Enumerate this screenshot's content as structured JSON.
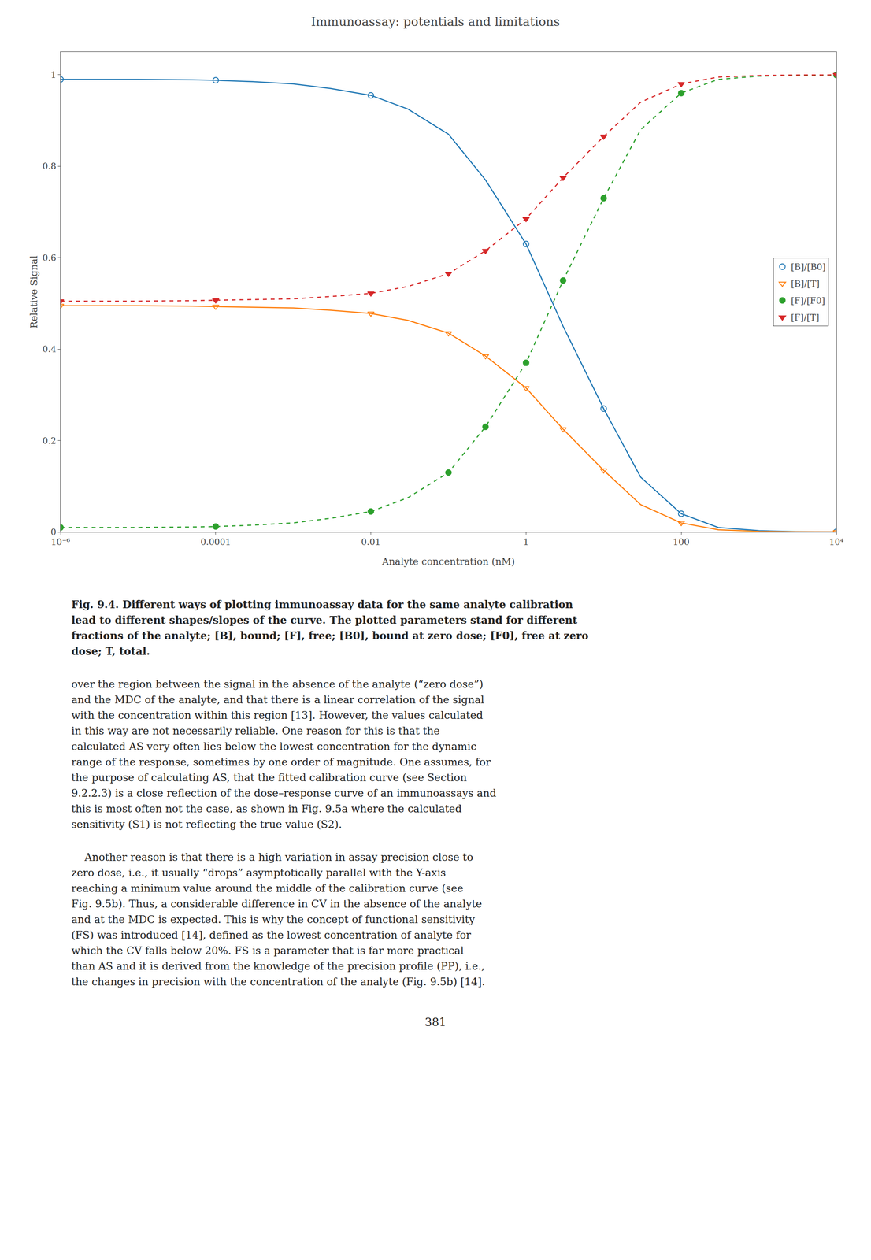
{
  "chart_data": {
    "type": "line",
    "title": "Immunoassay: potentials and limitations",
    "xlabel": "Analyte concentration (nM)",
    "ylabel": "Relative Signal",
    "log": "x",
    "xlim": [
      1e-06,
      10000.0
    ],
    "xticks": [
      {
        "value": 1e-06,
        "label": "10⁻⁶"
      },
      0.0001,
      0.01,
      1,
      100,
      {
        "value": 10000.0,
        "label": "10⁴"
      }
    ],
    "ylim": [
      0,
      1.05
    ],
    "yticks": [
      0,
      0.2,
      0.4,
      0.6,
      0.8,
      1
    ],
    "grid": false,
    "legend": "right",
    "series": [
      {
        "name": "[B]/[B0]",
        "marker": "circle-open",
        "line_style": "solid",
        "x": [
          1e-06,
          5e-06,
          1e-05,
          5e-05,
          0.0001,
          0.0003,
          0.001,
          0.003,
          0.01,
          0.03,
          0.1,
          0.3,
          1,
          3,
          10,
          30,
          100,
          300,
          1000,
          3000,
          10000.0
        ],
        "values": [
          0.99,
          0.99,
          0.99,
          0.989,
          0.988,
          0.985,
          0.98,
          0.97,
          0.955,
          0.925,
          0.87,
          0.77,
          0.63,
          0.45,
          0.27,
          0.12,
          0.04,
          0.01,
          0.003,
          0.001,
          0.0005
        ],
        "marker_x": [
          1e-06,
          0.0001,
          0.01,
          1.0,
          10.0,
          100.0,
          10000.0
        ],
        "marker_values": [
          0.99,
          0.988,
          0.955,
          0.63,
          0.27,
          0.04,
          0.0005
        ]
      },
      {
        "name": "[B]/[T]",
        "marker": "triangle-down-open",
        "line_style": "solid",
        "x": [
          1e-06,
          5e-06,
          1e-05,
          5e-05,
          0.0001,
          0.0003,
          0.001,
          0.003,
          0.01,
          0.03,
          0.1,
          0.3,
          1,
          3,
          10,
          30,
          100,
          300,
          1000,
          3000,
          10000.0
        ],
        "values": [
          0.495,
          0.495,
          0.495,
          0.494,
          0.493,
          0.492,
          0.49,
          0.485,
          0.478,
          0.463,
          0.435,
          0.385,
          0.315,
          0.225,
          0.135,
          0.06,
          0.02,
          0.005,
          0.0015,
          0.0005,
          0.0002
        ],
        "marker_x": [
          1e-06,
          0.0001,
          0.01,
          0.1,
          0.3,
          1.0,
          3.0,
          10.0,
          100.0,
          10000.0
        ],
        "marker_values": [
          0.495,
          0.493,
          0.478,
          0.435,
          0.385,
          0.315,
          0.225,
          0.135,
          0.02,
          0.0002
        ]
      },
      {
        "name": "[F]/[F0]",
        "marker": "circle",
        "line_style": "dash",
        "x": [
          1e-06,
          5e-06,
          1e-05,
          5e-05,
          0.0001,
          0.0003,
          0.001,
          0.003,
          0.01,
          0.03,
          0.1,
          0.3,
          1,
          3,
          10,
          30,
          100,
          300,
          1000,
          3000,
          10000.0
        ],
        "values": [
          0.01,
          0.01,
          0.01,
          0.011,
          0.012,
          0.015,
          0.02,
          0.03,
          0.045,
          0.075,
          0.13,
          0.23,
          0.37,
          0.55,
          0.73,
          0.88,
          0.96,
          0.99,
          0.997,
          0.999,
          0.9995
        ],
        "marker_x": [
          1e-06,
          0.0001,
          0.01,
          0.1,
          0.3,
          1.0,
          3.0,
          10.0,
          100.0,
          10000.0
        ],
        "marker_values": [
          0.01,
          0.012,
          0.045,
          0.13,
          0.23,
          0.37,
          0.55,
          0.73,
          0.96,
          0.9995
        ]
      },
      {
        "name": "[F]/[T]",
        "marker": "triangle-down",
        "line_style": "dash",
        "x": [
          1e-06,
          5e-06,
          1e-05,
          5e-05,
          0.0001,
          0.0003,
          0.001,
          0.003,
          0.01,
          0.03,
          0.1,
          0.3,
          1,
          3,
          10,
          30,
          100,
          300,
          1000,
          3000,
          10000.0
        ],
        "values": [
          0.505,
          0.505,
          0.505,
          0.506,
          0.507,
          0.508,
          0.51,
          0.515,
          0.522,
          0.537,
          0.565,
          0.615,
          0.685,
          0.775,
          0.865,
          0.94,
          0.98,
          0.995,
          0.9985,
          0.9995,
          0.9998
        ],
        "marker_x": [
          1e-06,
          0.0001,
          0.01,
          0.1,
          0.3,
          1.0,
          3.0,
          10.0,
          100.0,
          10000.0
        ],
        "marker_values": [
          0.505,
          0.507,
          0.522,
          0.565,
          0.615,
          0.685,
          0.775,
          0.865,
          0.98,
          0.9998
        ]
      }
    ],
    "annotations": [
      [
        "Fig. 9.4. Different ways of plotting immunoassay data for the same analyte calibration",
        "lead to different shapes/slopes of the curve. The plotted parameters stand for different",
        "fractions of the analyte; [B], bound; [F], free; [B0], bound at zero dose; [F0], free at zero",
        "dose; T, total."
      ],
      [
        "over the region between the signal in the absence of the analyte (“zero dose”)",
        "and the MDC of the analyte, and that there is a linear correlation of the signal",
        "with the concentration within this region [13]. However, the values calculated",
        "in this way are not necessarily reliable. One reason for this is that the",
        "calculated AS very often lies below the lowest concentration for the dynamic",
        "range of the response, sometimes by one order of magnitude. One assumes, for",
        "the purpose of calculating AS, that the fitted calibration curve (see Section",
        "9.2.2.3) is a close reflection of the dose–response curve of an immunoassays and",
        "this is most often not the case, as shown in Fig. 9.5a where the calculated",
        "sensitivity (S1) is not reflecting the true value (S2)."
      ],
      [
        "    Another reason is that there is a high variation in assay precision close to",
        "zero dose, i.e., it usually “drops” asymptotically parallel with the Y-axis",
        "reaching a minimum value around the middle of the calibration curve (see",
        "Fig. 9.5b). Thus, a considerable difference in CV in the absence of the analyte",
        "and at the MDC is expected. This is why the concept of functional sensitivity",
        "(FS) was introduced [14], defined as the lowest concentration of analyte for",
        "which the CV falls below 20%. FS is a parameter that is far more practical",
        "than AS and it is derived from the knowledge of the precision profile (PP), i.e.,",
        "the changes in precision with the concentration of the analyte (Fig. 9.5b) [14]."
      ],
      [
        "381"
      ]
    ]
  }
}
